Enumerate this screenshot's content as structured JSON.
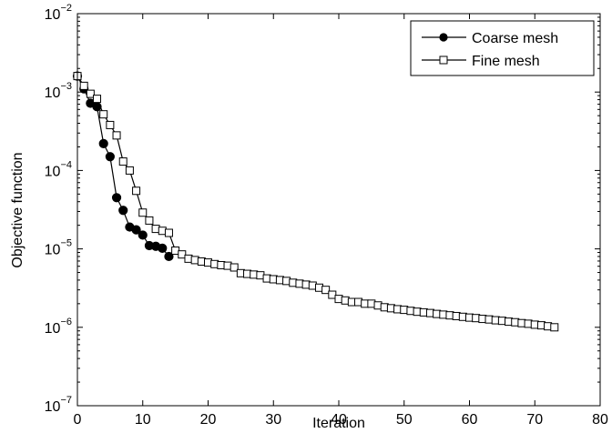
{
  "chart_data": {
    "type": "line",
    "title": "",
    "xlabel": "Iteration",
    "ylabel": "Objective function",
    "xlim": [
      0,
      80
    ],
    "ylim": [
      1e-07,
      0.01
    ],
    "yscale": "log",
    "grid": false,
    "legend_position": "top-right",
    "x_ticks": [
      {
        "value": 0,
        "label": "0"
      },
      {
        "value": 10,
        "label": "10"
      },
      {
        "value": 20,
        "label": "20"
      },
      {
        "value": 30,
        "label": "30"
      },
      {
        "value": 40,
        "label": "40"
      },
      {
        "value": 50,
        "label": "50"
      },
      {
        "value": 60,
        "label": "60"
      },
      {
        "value": 70,
        "label": "70"
      },
      {
        "value": 80,
        "label": "80"
      }
    ],
    "y_ticks": [
      {
        "value": 1e-07,
        "base": "10",
        "exp": "−7"
      },
      {
        "value": 1e-06,
        "base": "10",
        "exp": "−6"
      },
      {
        "value": 1e-05,
        "base": "10",
        "exp": "−5"
      },
      {
        "value": 0.0001,
        "base": "10",
        "exp": "−4"
      },
      {
        "value": 0.001,
        "base": "10",
        "exp": "−3"
      },
      {
        "value": 0.01,
        "base": "10",
        "exp": "−2"
      }
    ],
    "series": [
      {
        "name": "Coarse mesh",
        "marker": "filled-circle",
        "color": "#000000",
        "x": [
          0,
          1,
          2,
          3,
          4,
          5,
          6,
          7,
          8,
          9,
          10,
          11,
          12,
          13,
          14
        ],
        "y": [
          0.0016,
          0.0011,
          0.00072,
          0.00065,
          0.00022,
          0.00015,
          4.5e-05,
          3.1e-05,
          1.9e-05,
          1.75e-05,
          1.5e-05,
          1.1e-05,
          1.08e-05,
          1.02e-05,
          8e-06
        ]
      },
      {
        "name": "Fine mesh",
        "marker": "open-square",
        "color": "#000000",
        "x": [
          0,
          1,
          2,
          3,
          4,
          5,
          6,
          7,
          8,
          9,
          10,
          11,
          12,
          13,
          14,
          15,
          16,
          17,
          18,
          19,
          20,
          21,
          22,
          23,
          24,
          25,
          26,
          27,
          28,
          29,
          30,
          31,
          32,
          33,
          34,
          35,
          36,
          37,
          38,
          39,
          40,
          41,
          42,
          43,
          44,
          45,
          46,
          47,
          48,
          49,
          50,
          51,
          52,
          53,
          54,
          55,
          56,
          57,
          58,
          59,
          60,
          61,
          62,
          63,
          64,
          65,
          66,
          67,
          68,
          69,
          70,
          71,
          72,
          73
        ],
        "y": [
          0.0016,
          0.0012,
          0.00095,
          0.00082,
          0.00052,
          0.00038,
          0.00028,
          0.00013,
          0.0001,
          5.5e-05,
          2.9e-05,
          2.3e-05,
          1.8e-05,
          1.7e-05,
          1.6e-05,
          9.5e-06,
          8.5e-06,
          7.5e-06,
          7.2e-06,
          6.9e-06,
          6.7e-06,
          6.4e-06,
          6.2e-06,
          6.1e-06,
          5.8e-06,
          4.9e-06,
          4.8e-06,
          4.7e-06,
          4.6e-06,
          4.2e-06,
          4.1e-06,
          4e-06,
          3.9e-06,
          3.7e-06,
          3.6e-06,
          3.5e-06,
          3.4e-06,
          3.2e-06,
          3e-06,
          2.6e-06,
          2.3e-06,
          2.2e-06,
          2.1e-06,
          2.1e-06,
          2e-06,
          2e-06,
          1.9e-06,
          1.8e-06,
          1.75e-06,
          1.7e-06,
          1.67e-06,
          1.62e-06,
          1.58e-06,
          1.55e-06,
          1.52e-06,
          1.48e-06,
          1.45e-06,
          1.42e-06,
          1.39e-06,
          1.36e-06,
          1.33e-06,
          1.31e-06,
          1.28e-06,
          1.26e-06,
          1.23e-06,
          1.21e-06,
          1.18e-06,
          1.16e-06,
          1.13e-06,
          1.11e-06,
          1.08e-06,
          1.06e-06,
          1.03e-06,
          1e-06
        ]
      }
    ]
  }
}
